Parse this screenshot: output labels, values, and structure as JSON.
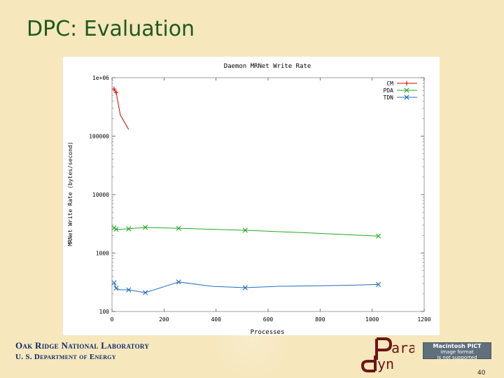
{
  "slide": {
    "title": "DPC: Evaluation",
    "footer_lab": "Oak Ridge National Laboratory",
    "footer_dept": "U. S. Department of Energy",
    "page_number": "40",
    "logo_text_top": "ara",
    "logo_text_bottom": "yn",
    "pict_notice_line1": "Macintosh PICT",
    "pict_notice_line2": "image format",
    "pict_notice_line3": "is not supported"
  },
  "chart_data": {
    "type": "line",
    "title": "Daemon MRNet Write Rate",
    "xlabel": "Processes",
    "ylabel": "MRNet Write Rate (bytes/second)",
    "yscale": "log",
    "xlim": [
      0,
      1200
    ],
    "ylim": [
      100,
      1000000
    ],
    "x_ticks": [
      0,
      200,
      400,
      600,
      800,
      1000,
      1200
    ],
    "x_tick_labels": [
      "0",
      "200",
      "400",
      "600",
      "800",
      "1000",
      "1200"
    ],
    "y_ticks": [
      100,
      1000,
      10000,
      100000,
      1000000
    ],
    "y_tick_labels": [
      "100",
      "1000",
      "10000",
      "100000",
      "1e+06"
    ],
    "legend_position": "top-right",
    "series": [
      {
        "name": "CM",
        "color": "#dd0000",
        "marker": "plus",
        "x": [
          8,
          16,
          32,
          64
        ],
        "y": [
          640000,
          560000,
          230000,
          130000
        ],
        "marked": [
          true,
          true,
          false,
          false
        ]
      },
      {
        "name": "PDA",
        "color": "#22aa22",
        "marker": "x",
        "x": [
          8,
          16,
          32,
          64,
          128,
          256,
          512,
          768,
          1024
        ],
        "y": [
          2700,
          2550,
          2550,
          2600,
          2750,
          2650,
          2450,
          2200,
          1950
        ],
        "marked": [
          true,
          true,
          false,
          true,
          true,
          true,
          true,
          false,
          true
        ]
      },
      {
        "name": "TDN",
        "color": "#1f6fc0",
        "marker": "x",
        "x": [
          8,
          16,
          32,
          64,
          128,
          256,
          384,
          512,
          640,
          768,
          896,
          1024
        ],
        "y": [
          310,
          250,
          235,
          235,
          210,
          320,
          270,
          255,
          270,
          275,
          280,
          290
        ],
        "marked": [
          true,
          true,
          false,
          true,
          true,
          true,
          false,
          true,
          false,
          false,
          false,
          true
        ]
      }
    ]
  }
}
